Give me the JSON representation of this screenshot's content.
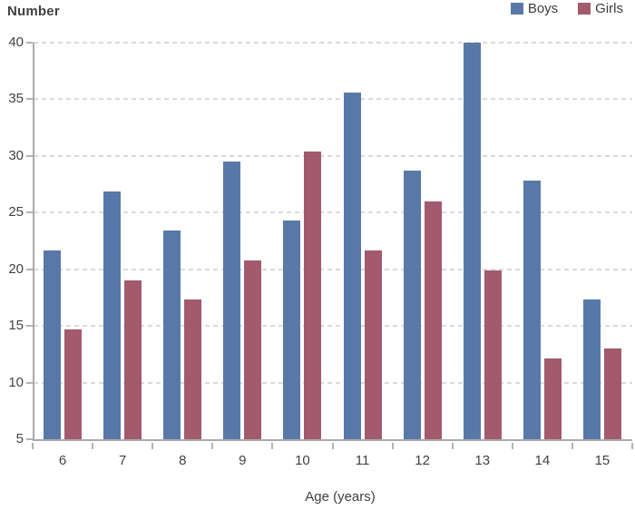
{
  "chart_data": {
    "type": "bar",
    "title": "Number",
    "ylabel": "Number",
    "xlabel": "Age (years)",
    "categories": [
      "6",
      "7",
      "8",
      "9",
      "10",
      "11",
      "12",
      "13",
      "14",
      "15"
    ],
    "series": [
      {
        "name": "Boys",
        "color": "#5878a8",
        "values": [
          21.7,
          26.9,
          23.4,
          29.5,
          24.3,
          35.6,
          28.7,
          40.0,
          27.8,
          17.3
        ]
      },
      {
        "name": "Girls",
        "color": "#a25a6c",
        "values": [
          14.7,
          19.0,
          17.3,
          20.8,
          30.4,
          21.7,
          26.0,
          19.9,
          12.1,
          13.0
        ]
      }
    ],
    "ylim": [
      5,
      40
    ],
    "yticks": [
      5,
      10,
      15,
      20,
      25,
      30,
      35,
      40
    ],
    "grid": true,
    "gridline_style": "dashed",
    "legend_position": "top-right"
  },
  "colors": {
    "boys": "#5878a8",
    "girls": "#a25a6c",
    "axis": "#aaaaaa",
    "gridline": "#dadada",
    "text": "#424242"
  }
}
